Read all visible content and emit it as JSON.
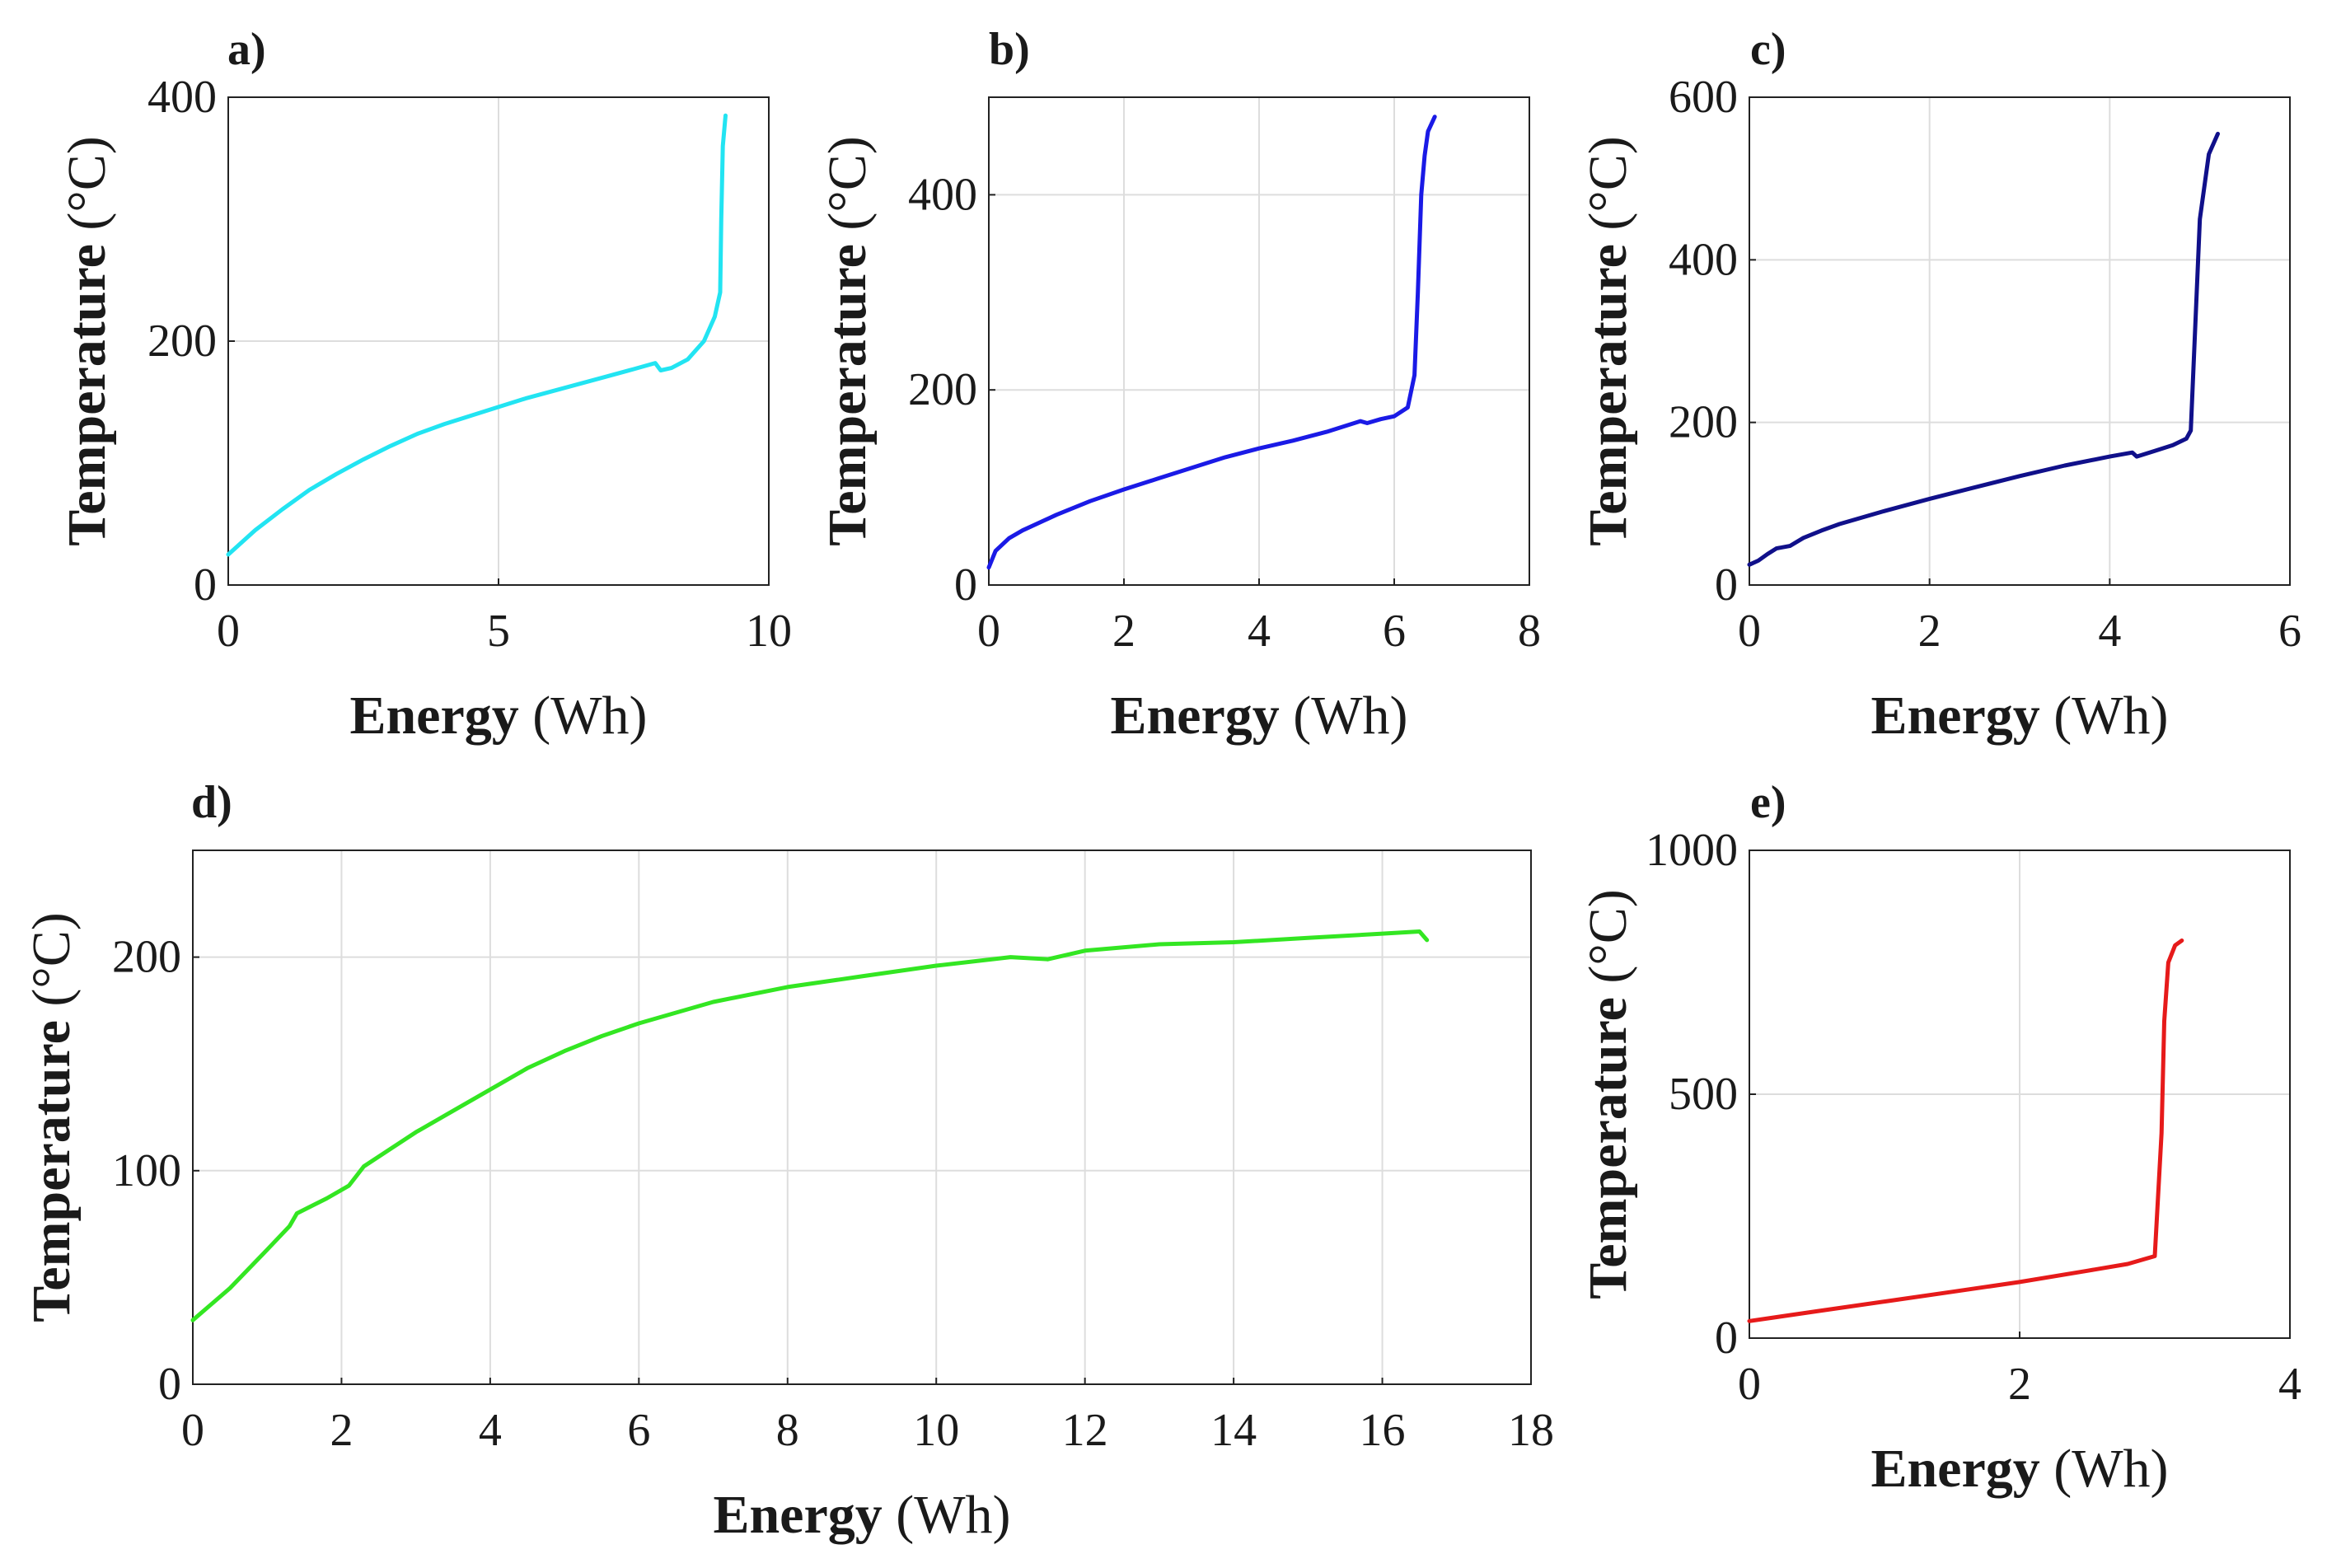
{
  "chart_data": [
    {
      "type": "line",
      "label": "a)",
      "xlabel": "Energy",
      "xunit": "(Wh)",
      "ylabel": "Temperature",
      "yunit": "(°C)",
      "xlim": [
        0,
        10
      ],
      "ylim": [
        0,
        400
      ],
      "xticks": [
        0,
        5,
        10
      ],
      "yticks": [
        0,
        200,
        400
      ],
      "grid": true,
      "color": "#22e4f2",
      "series": [
        {
          "name": "a",
          "x": [
            0,
            0.5,
            1,
            1.5,
            2,
            2.5,
            3,
            3.5,
            4,
            4.5,
            5,
            5.5,
            6,
            6.5,
            7,
            7.5,
            7.9,
            8.0,
            8.2,
            8.5,
            8.8,
            9.0,
            9.1,
            9.12,
            9.15,
            9.2
          ],
          "y": [
            25,
            45,
            62,
            78,
            91,
            103,
            114,
            124,
            132,
            139,
            146,
            153,
            159,
            165,
            171,
            177,
            182,
            176,
            178,
            185,
            200,
            220,
            240,
            300,
            360,
            385
          ]
        }
      ]
    },
    {
      "type": "line",
      "label": "b)",
      "xlabel": "Energy",
      "xunit": "(Wh)",
      "ylabel": "Temperature",
      "yunit": "(°C)",
      "xlim": [
        0,
        8
      ],
      "ylim": [
        0,
        500
      ],
      "xticks": [
        0,
        2,
        4,
        6,
        8
      ],
      "yticks": [
        0,
        200,
        400
      ],
      "grid": true,
      "color": "#1a1ae6",
      "series": [
        {
          "name": "b",
          "x": [
            0,
            0.1,
            0.3,
            0.5,
            1,
            1.5,
            2,
            2.5,
            3,
            3.5,
            4,
            4.5,
            5,
            5.5,
            5.6,
            5.8,
            6.0,
            6.2,
            6.3,
            6.35,
            6.4,
            6.45,
            6.5,
            6.6
          ],
          "y": [
            18,
            35,
            48,
            56,
            72,
            86,
            98,
            109,
            120,
            131,
            140,
            148,
            157,
            168,
            166,
            170,
            173,
            182,
            215,
            300,
            400,
            440,
            465,
            480
          ]
        }
      ]
    },
    {
      "type": "line",
      "label": "c)",
      "xlabel": "Energy",
      "xunit": "(Wh)",
      "ylabel": "Temperature",
      "yunit": "(°C)",
      "xlim": [
        0,
        6
      ],
      "ylim": [
        0,
        600
      ],
      "xticks": [
        0,
        2,
        4,
        6
      ],
      "yticks": [
        0,
        200,
        400,
        600
      ],
      "grid": true,
      "color": "#10108a",
      "series": [
        {
          "name": "c",
          "x": [
            0,
            0.1,
            0.2,
            0.3,
            0.45,
            0.6,
            0.8,
            1,
            1.5,
            2,
            2.5,
            3,
            3.5,
            4,
            4.25,
            4.3,
            4.5,
            4.7,
            4.85,
            4.9,
            4.95,
            5.0,
            5.1,
            5.2
          ],
          "y": [
            25,
            30,
            38,
            45,
            48,
            58,
            67,
            75,
            91,
            106,
            120,
            134,
            147,
            158,
            163,
            158,
            165,
            172,
            180,
            190,
            320,
            450,
            530,
            555
          ]
        }
      ]
    },
    {
      "type": "line",
      "label": "d)",
      "xlabel": "Energy",
      "xunit": "(Wh)",
      "ylabel": "Temperature",
      "yunit": "(°C)",
      "xlim": [
        0,
        18
      ],
      "ylim": [
        0,
        250
      ],
      "xticks": [
        0,
        2,
        4,
        6,
        8,
        10,
        12,
        14,
        16,
        18
      ],
      "yticks": [
        0,
        100,
        200
      ],
      "grid": true,
      "color": "#33e622",
      "series": [
        {
          "name": "d",
          "x": [
            0,
            0.5,
            1,
            1.3,
            1.4,
            1.8,
            2.1,
            2.3,
            3,
            3.5,
            4,
            4.5,
            5,
            5.5,
            6,
            7,
            8,
            9,
            10,
            11,
            11.5,
            12,
            13,
            14,
            15,
            16,
            16.5,
            16.6
          ],
          "y": [
            30,
            45,
            63,
            74,
            80,
            87,
            93,
            102,
            118,
            128,
            138,
            148,
            156,
            163,
            169,
            179,
            186,
            191,
            196,
            200,
            199,
            203,
            206,
            207,
            209,
            211,
            212,
            208
          ]
        }
      ]
    },
    {
      "type": "line",
      "label": "e)",
      "xlabel": "Energy",
      "xunit": "(Wh)",
      "ylabel": "Temperature",
      "yunit": "(°C)",
      "xlim": [
        0,
        4
      ],
      "ylim": [
        0,
        1000
      ],
      "xticks": [
        0,
        2,
        4
      ],
      "yticks": [
        0,
        500,
        1000
      ],
      "grid": true,
      "color": "#e61a1a",
      "series": [
        {
          "name": "e",
          "x": [
            0,
            0.5,
            1,
            1.5,
            2,
            2.5,
            2.8,
            3.0,
            3.05,
            3.07,
            3.1,
            3.15,
            3.2
          ],
          "y": [
            35,
            55,
            75,
            95,
            115,
            138,
            152,
            168,
            420,
            650,
            770,
            805,
            815
          ]
        }
      ]
    }
  ]
}
